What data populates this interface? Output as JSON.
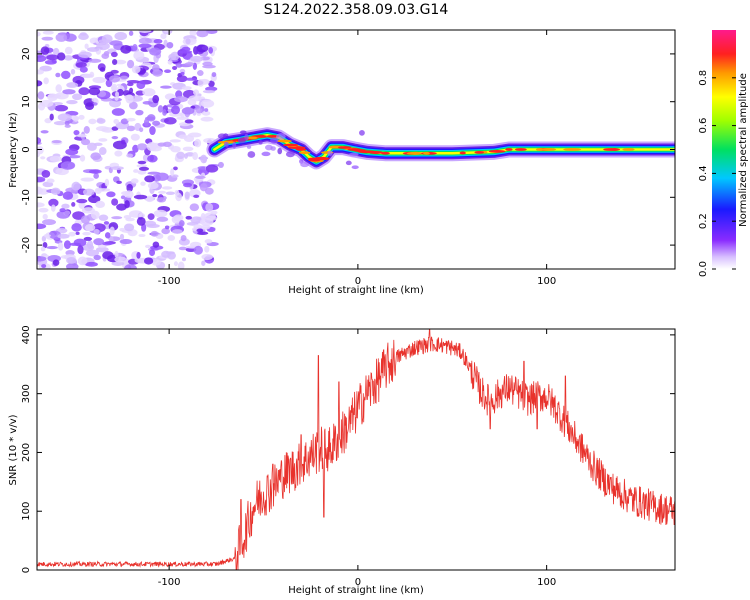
{
  "title": "S124.2022.358.09.03.G14",
  "chart_data": [
    {
      "type": "heatmap",
      "name": "spectrogram",
      "xlabel": "Height of straight line (km)",
      "ylabel": "Frequency (Hz)",
      "xlim": [
        -170,
        168
      ],
      "ylim": [
        -25,
        25
      ],
      "xticks": [
        -100,
        0,
        100
      ],
      "yticks": [
        -20,
        -10,
        0,
        10,
        20
      ],
      "colorbar": {
        "label": "Normalized spectral amplitude",
        "range": [
          0,
          1
        ],
        "ticks": [
          0.0,
          0.2,
          0.4,
          0.6,
          0.8
        ],
        "tick_labels": [
          "0.0",
          "0.2",
          "0.4",
          "0.6",
          "0.8"
        ]
      },
      "noise_region_x": [
        -170,
        -76
      ],
      "signal_track": {
        "x": [
          -76,
          -70,
          -62,
          -55,
          -48,
          -42,
          -36,
          -30,
          -26,
          -22,
          -18,
          -14,
          -8,
          -2,
          5,
          15,
          30,
          50,
          72,
          80,
          100,
          130,
          168
        ],
        "frequency": [
          0,
          1.5,
          2,
          2.5,
          3,
          2.5,
          1,
          0,
          -1.5,
          -2.5,
          -1.5,
          0.5,
          0.5,
          0,
          -0.5,
          -0.8,
          -0.8,
          -0.8,
          -0.5,
          0,
          0,
          0,
          0
        ]
      }
    },
    {
      "type": "line",
      "name": "snr",
      "xlabel": "Height of straight line (km)",
      "ylabel": "SNR (10 * v/v)",
      "xlim": [
        -170,
        168
      ],
      "ylim": [
        0,
        410
      ],
      "xticks": [
        -100,
        0,
        100
      ],
      "yticks": [
        0,
        100,
        200,
        300,
        400
      ],
      "color": "#e8322c",
      "x": [
        -170,
        -150,
        -130,
        -110,
        -90,
        -75,
        -65,
        -60,
        -55,
        -50,
        -45,
        -40,
        -35,
        -30,
        -25,
        -20,
        -15,
        -10,
        -5,
        0,
        5,
        10,
        15,
        20,
        25,
        30,
        35,
        40,
        45,
        50,
        55,
        60,
        65,
        70,
        75,
        80,
        85,
        90,
        95,
        100,
        105,
        110,
        115,
        120,
        125,
        130,
        135,
        140,
        145,
        150,
        155,
        160,
        168
      ],
      "y": [
        10,
        10,
        10,
        10,
        10,
        10,
        20,
        60,
        110,
        130,
        140,
        160,
        170,
        180,
        195,
        205,
        205,
        225,
        245,
        275,
        300,
        320,
        345,
        360,
        370,
        378,
        382,
        385,
        382,
        378,
        370,
        340,
        305,
        285,
        300,
        310,
        300,
        290,
        295,
        295,
        275,
        250,
        225,
        200,
        175,
        155,
        140,
        130,
        120,
        115,
        110,
        105,
        100
      ],
      "spikes": [
        [
          -62,
          120
        ],
        [
          -45,
          180
        ],
        [
          -30,
          230
        ],
        [
          -21,
          365
        ],
        [
          -18,
          90
        ],
        [
          -10,
          320
        ],
        [
          5,
          290
        ],
        [
          38,
          410
        ],
        [
          70,
          240
        ],
        [
          88,
          355
        ],
        [
          95,
          240
        ],
        [
          110,
          330
        ]
      ]
    }
  ]
}
